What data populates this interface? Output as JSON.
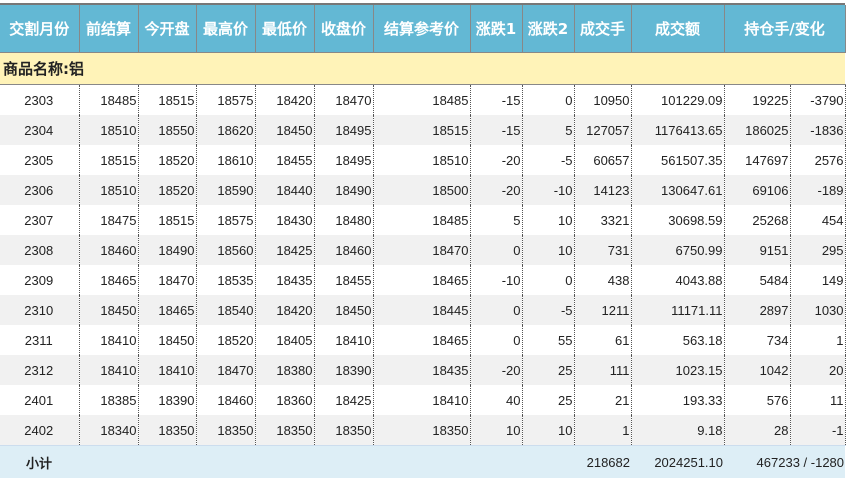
{
  "headers": [
    "交割月份",
    "前结算",
    "今开盘",
    "最高价",
    "最低价",
    "收盘价",
    "结算参考价",
    "涨跌1",
    "涨跌2",
    "成交手",
    "成交额",
    "持仓手/变化"
  ],
  "category_label": "商品名称:铝",
  "rows": [
    [
      "2303",
      "18485",
      "18515",
      "18575",
      "18420",
      "18470",
      "18485",
      "-15",
      "0",
      "10950",
      "101229.09",
      "19225",
      "-3790"
    ],
    [
      "2304",
      "18510",
      "18550",
      "18620",
      "18450",
      "18495",
      "18515",
      "-15",
      "5",
      "127057",
      "1176413.65",
      "186025",
      "-1836"
    ],
    [
      "2305",
      "18515",
      "18520",
      "18610",
      "18455",
      "18495",
      "18510",
      "-20",
      "-5",
      "60657",
      "561507.35",
      "147697",
      "2576"
    ],
    [
      "2306",
      "18510",
      "18520",
      "18590",
      "18440",
      "18490",
      "18500",
      "-20",
      "-10",
      "14123",
      "130647.61",
      "69106",
      "-189"
    ],
    [
      "2307",
      "18475",
      "18515",
      "18575",
      "18430",
      "18480",
      "18485",
      "5",
      "10",
      "3321",
      "30698.59",
      "25268",
      "454"
    ],
    [
      "2308",
      "18460",
      "18490",
      "18560",
      "18425",
      "18460",
      "18470",
      "0",
      "10",
      "731",
      "6750.99",
      "9151",
      "295"
    ],
    [
      "2309",
      "18465",
      "18470",
      "18535",
      "18435",
      "18455",
      "18465",
      "-10",
      "0",
      "438",
      "4043.88",
      "5484",
      "149"
    ],
    [
      "2310",
      "18450",
      "18465",
      "18540",
      "18420",
      "18450",
      "18445",
      "0",
      "-5",
      "1211",
      "11171.11",
      "2897",
      "1030"
    ],
    [
      "2311",
      "18410",
      "18450",
      "18520",
      "18405",
      "18410",
      "18465",
      "0",
      "55",
      "61",
      "563.18",
      "734",
      "1"
    ],
    [
      "2312",
      "18410",
      "18410",
      "18470",
      "18380",
      "18390",
      "18435",
      "-20",
      "25",
      "111",
      "1023.15",
      "1042",
      "20"
    ],
    [
      "2401",
      "18385",
      "18390",
      "18460",
      "18360",
      "18425",
      "18410",
      "40",
      "25",
      "21",
      "193.33",
      "576",
      "11"
    ],
    [
      "2402",
      "18340",
      "18350",
      "18350",
      "18350",
      "18350",
      "18350",
      "10",
      "10",
      "1",
      "9.18",
      "28",
      "-1"
    ]
  ],
  "subtotal": {
    "label": "小计",
    "volume": "218682",
    "turnover": "2024251.10",
    "open_interest": "467233 / -1280"
  },
  "colors": {
    "header": "#63b8d4",
    "category": "#fff3b8",
    "subtotal": "#ddeef6"
  }
}
